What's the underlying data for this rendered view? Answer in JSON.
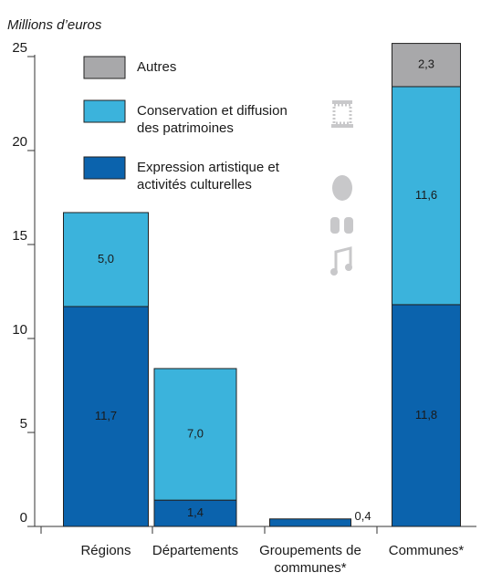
{
  "chart_data": {
    "type": "stacked_bar",
    "y_axis_label": "Millions d’euros",
    "categories": [
      "Régions",
      "Départements",
      "Groupements de communes*",
      "Communes*"
    ],
    "series": [
      {
        "name": "Expression artistique et activités culturelles",
        "color": "#0b63ad",
        "values": [
          11.7,
          1.4,
          0.4,
          11.8
        ],
        "value_labels": [
          "11,7",
          "1,4",
          "0,4",
          "11,8"
        ]
      },
      {
        "name": "Conservation et diffusion des patrimoines",
        "color": "#3bb3dc",
        "values": [
          5.0,
          7.0,
          null,
          11.6
        ],
        "value_labels": [
          "5,0",
          "7,0",
          null,
          "11,6"
        ]
      },
      {
        "name": "Autres",
        "color": "#a8a8aa",
        "values": [
          null,
          null,
          null,
          2.3
        ],
        "value_labels": [
          null,
          null,
          null,
          "2,3"
        ]
      }
    ],
    "ylim": [
      0,
      25
    ],
    "yticks": [
      0,
      5,
      10,
      15,
      20,
      25
    ]
  }
}
